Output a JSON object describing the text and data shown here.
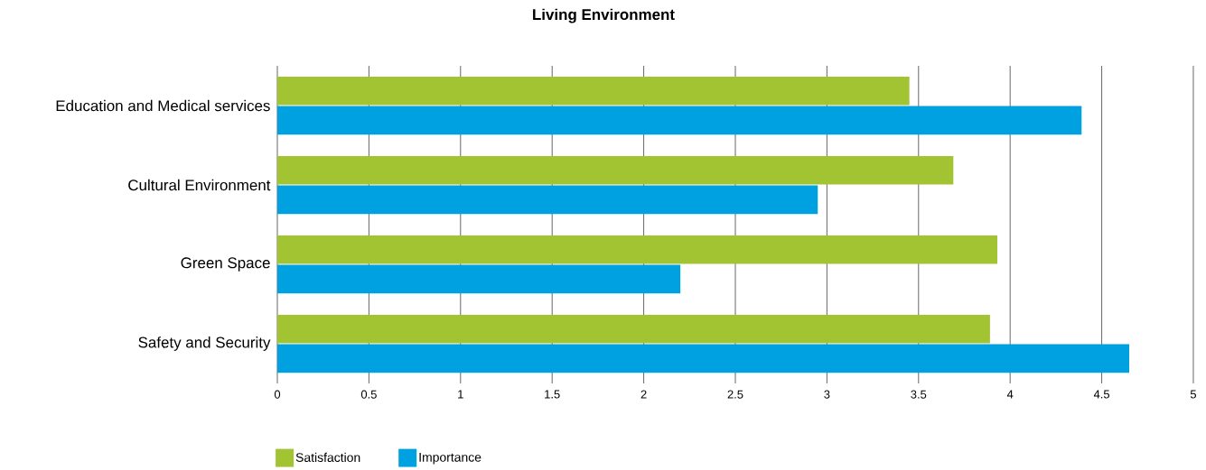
{
  "chart_data": {
    "type": "bar",
    "orientation": "horizontal",
    "title": "Living Environment",
    "categories": [
      "Education and Medical services",
      "Cultural Environment",
      "Green Space",
      "Safety and Security"
    ],
    "series": [
      {
        "name": "Satisfaction",
        "color": "#a2c332",
        "values": [
          3.45,
          3.69,
          3.93,
          3.89
        ]
      },
      {
        "name": "Importance",
        "color": "#00a1e0",
        "values": [
          4.39,
          2.95,
          2.2,
          4.65
        ]
      }
    ],
    "xlim": [
      0,
      5
    ],
    "xticks": [
      0,
      0.5,
      1,
      1.5,
      2,
      2.5,
      3,
      3.5,
      4,
      4.5,
      5
    ],
    "grid": "x",
    "legend": "bottom"
  }
}
